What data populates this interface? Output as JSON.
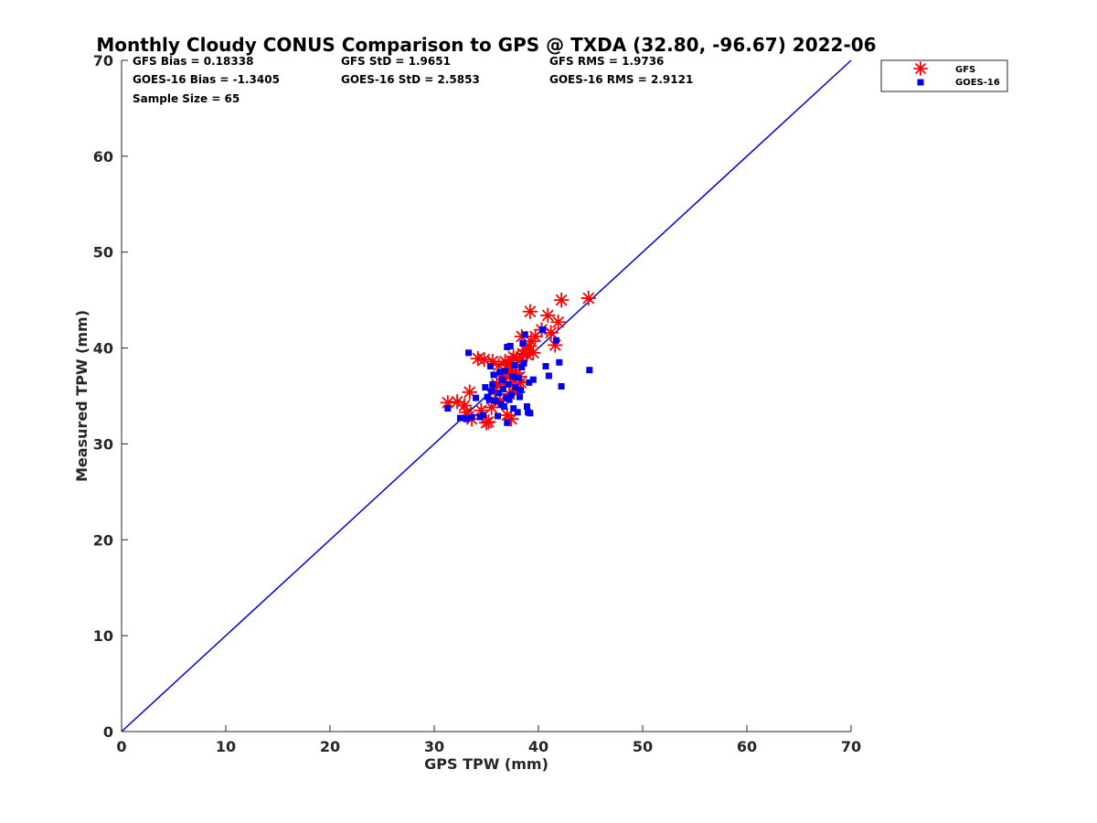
{
  "chart_data": {
    "type": "scatter",
    "title": "Monthly Cloudy CONUS Comparison to GPS @ TXDA (32.80, -96.67) 2022-06",
    "xlabel": "GPS TPW (mm)",
    "ylabel": "Measured TPW (mm)",
    "xlim": [
      0,
      70
    ],
    "ylim": [
      0,
      70
    ],
    "xticks": [
      "0",
      "10",
      "20",
      "30",
      "40",
      "50",
      "60",
      "70"
    ],
    "yticks": [
      "0",
      "10",
      "20",
      "30",
      "40",
      "50",
      "60",
      "70"
    ],
    "grid": false,
    "legend_position": "top-right, outside plot",
    "stats": [
      "GFS Bias = 0.18338",
      "GFS StD = 1.9651",
      "GFS RMS = 1.9736",
      "GOES-16 Bias = -1.3405",
      "GOES-16 StD = 2.5853",
      "GOES-16 RMS = 2.9121",
      "Sample Size = 65"
    ],
    "reference_line": {
      "x": [
        0,
        70
      ],
      "y": [
        0,
        70
      ],
      "color": "#0000dd"
    },
    "series": [
      {
        "name": "GFS",
        "marker": "asterisk",
        "color": "#ff0000",
        "points": [
          [
            31.3,
            34.3
          ],
          [
            32.2,
            34.4
          ],
          [
            32.9,
            34.0
          ],
          [
            33.1,
            33.3
          ],
          [
            33.4,
            35.4
          ],
          [
            33.6,
            32.6
          ],
          [
            34.2,
            38.9
          ],
          [
            34.5,
            33.5
          ],
          [
            34.8,
            38.8
          ],
          [
            35.0,
            32.2
          ],
          [
            35.2,
            32.3
          ],
          [
            35.5,
            33.8
          ],
          [
            35.6,
            38.6
          ],
          [
            35.8,
            35.5
          ],
          [
            36.0,
            36.2
          ],
          [
            36.2,
            38.2
          ],
          [
            36.3,
            34.5
          ],
          [
            36.5,
            37.1
          ],
          [
            36.7,
            36.4
          ],
          [
            36.8,
            38.6
          ],
          [
            37.0,
            33.0
          ],
          [
            37.1,
            38.3
          ],
          [
            37.2,
            35.2
          ],
          [
            37.3,
            37.7
          ],
          [
            37.4,
            32.6
          ],
          [
            37.5,
            36.8
          ],
          [
            37.6,
            39.1
          ],
          [
            37.7,
            36.0
          ],
          [
            37.8,
            37.4
          ],
          [
            37.9,
            38.9
          ],
          [
            38.0,
            35.4
          ],
          [
            38.1,
            38.7
          ],
          [
            38.2,
            37.0
          ],
          [
            38.3,
            36.4
          ],
          [
            38.4,
            41.2
          ],
          [
            38.5,
            39.4
          ],
          [
            38.7,
            39.8
          ],
          [
            38.9,
            39.3
          ],
          [
            39.1,
            40.2
          ],
          [
            39.2,
            43.8
          ],
          [
            39.3,
            40.7
          ],
          [
            39.5,
            39.5
          ],
          [
            39.7,
            41.2
          ],
          [
            40.3,
            41.9
          ],
          [
            40.9,
            43.4
          ],
          [
            41.2,
            41.6
          ],
          [
            41.6,
            40.3
          ],
          [
            41.9,
            42.7
          ],
          [
            42.2,
            45.0
          ],
          [
            44.8,
            45.2
          ]
        ]
      },
      {
        "name": "GOES-16",
        "marker": "square",
        "color": "#0000ee",
        "points": [
          [
            31.3,
            33.7
          ],
          [
            32.5,
            32.7
          ],
          [
            33.1,
            32.6
          ],
          [
            33.3,
            39.5
          ],
          [
            33.6,
            32.8
          ],
          [
            34.0,
            34.8
          ],
          [
            34.4,
            32.8
          ],
          [
            34.7,
            33.0
          ],
          [
            34.9,
            35.9
          ],
          [
            35.1,
            34.9
          ],
          [
            35.3,
            34.6
          ],
          [
            35.4,
            38.1
          ],
          [
            35.5,
            35.5
          ],
          [
            35.6,
            36.2
          ],
          [
            35.7,
            37.2
          ],
          [
            35.9,
            34.5
          ],
          [
            36.1,
            32.9
          ],
          [
            36.2,
            35.3
          ],
          [
            36.3,
            37.5
          ],
          [
            36.4,
            34.1
          ],
          [
            36.5,
            36.7
          ],
          [
            36.6,
            35.7
          ],
          [
            36.7,
            33.9
          ],
          [
            36.8,
            37.6
          ],
          [
            36.9,
            34.8
          ],
          [
            37.0,
            40.1
          ],
          [
            37.0,
            32.2
          ],
          [
            37.1,
            36.2
          ],
          [
            37.2,
            34.6
          ],
          [
            37.3,
            40.2
          ],
          [
            37.4,
            35.1
          ],
          [
            37.5,
            37.0
          ],
          [
            37.6,
            33.7
          ],
          [
            37.7,
            38.2
          ],
          [
            37.8,
            35.9
          ],
          [
            38.0,
            33.3
          ],
          [
            38.1,
            36.9
          ],
          [
            38.2,
            34.9
          ],
          [
            38.3,
            35.6
          ],
          [
            38.4,
            38.0
          ],
          [
            38.5,
            40.5
          ],
          [
            38.6,
            38.4
          ],
          [
            38.7,
            41.4
          ],
          [
            38.9,
            33.9
          ],
          [
            39.0,
            33.3
          ],
          [
            39.1,
            36.4
          ],
          [
            39.2,
            33.2
          ],
          [
            39.5,
            36.7
          ],
          [
            40.4,
            41.9
          ],
          [
            40.7,
            38.1
          ],
          [
            41.0,
            37.1
          ],
          [
            41.7,
            40.8
          ],
          [
            42.0,
            38.5
          ],
          [
            42.2,
            36.0
          ],
          [
            44.9,
            37.7
          ]
        ]
      }
    ]
  }
}
